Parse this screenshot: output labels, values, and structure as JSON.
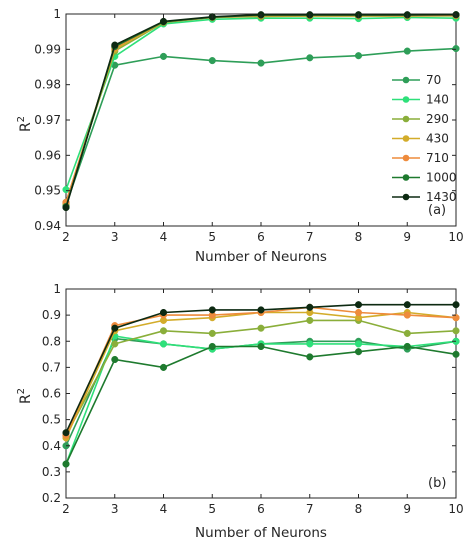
{
  "chart_data": [
    {
      "type": "line",
      "panel_label": "(a)",
      "xlabel": "Number of Neurons",
      "ylabel": "R",
      "ylabel_sup": "2",
      "x": [
        2,
        3,
        4,
        5,
        6,
        7,
        8,
        9,
        10
      ],
      "xlim": [
        2,
        10
      ],
      "ylim": [
        0.94,
        1
      ],
      "yticks": [
        "0.94",
        "0.95",
        "0.96",
        "0.97",
        "0.98",
        "0.99",
        "1"
      ],
      "xticks": [
        "2",
        "3",
        "4",
        "5",
        "6",
        "7",
        "8",
        "9",
        "10"
      ],
      "legend_placement": "center-right",
      "series": [
        {
          "name": "70",
          "color": "#2e9e58",
          "values": [
            0.946,
            0.9855,
            0.988,
            0.9868,
            0.9861,
            0.9876,
            0.9882,
            0.9895,
            0.9902
          ]
        },
        {
          "name": "140",
          "color": "#2ee07a",
          "values": [
            0.9503,
            0.988,
            0.9972,
            0.9985,
            0.9988,
            0.9988,
            0.9987,
            0.999,
            0.9988
          ]
        },
        {
          "name": "290",
          "color": "#8aae3a",
          "values": [
            0.9467,
            0.9895,
            0.9976,
            0.999,
            0.9993,
            0.9994,
            0.9994,
            0.9994,
            0.9995
          ]
        },
        {
          "name": "430",
          "color": "#d3ac2a",
          "values": [
            0.9463,
            0.99,
            0.9977,
            0.999,
            0.9995,
            0.9995,
            0.9995,
            0.9995,
            0.9996
          ]
        },
        {
          "name": "710",
          "color": "#ee8b3c",
          "values": [
            0.9467,
            0.9905,
            0.9978,
            0.9991,
            0.9996,
            0.9996,
            0.9996,
            0.9996,
            0.9997
          ]
        },
        {
          "name": "1000",
          "color": "#1e7a2e",
          "values": [
            0.9455,
            0.9908,
            0.9978,
            0.9991,
            0.9997,
            0.9997,
            0.9997,
            0.9997,
            0.9998
          ]
        },
        {
          "name": "1430",
          "color": "#0d2a12",
          "values": [
            0.9452,
            0.9912,
            0.9979,
            0.9992,
            0.9998,
            0.9998,
            0.9998,
            0.9998,
            0.9998
          ]
        }
      ]
    },
    {
      "type": "line",
      "panel_label": "(b)",
      "xlabel": "Number of Neurons",
      "ylabel": "R",
      "ylabel_sup": "2",
      "x": [
        2,
        3,
        4,
        5,
        6,
        7,
        8,
        9,
        10
      ],
      "xlim": [
        2,
        10
      ],
      "ylim": [
        0.2,
        1
      ],
      "yticks": [
        "0.2",
        "0.3",
        "0.4",
        "0.5",
        "0.6",
        "0.7",
        "0.8",
        "0.9",
        "1"
      ],
      "xticks": [
        "2",
        "3",
        "4",
        "5",
        "6",
        "7",
        "8",
        "9",
        "10"
      ],
      "series": [
        {
          "name": "70",
          "color": "#2e9e58",
          "values": [
            0.4,
            0.81,
            0.79,
            0.77,
            0.79,
            0.8,
            0.8,
            0.77,
            0.8
          ]
        },
        {
          "name": "140",
          "color": "#2ee07a",
          "values": [
            0.33,
            0.82,
            0.79,
            0.77,
            0.79,
            0.79,
            0.79,
            0.78,
            0.8
          ]
        },
        {
          "name": "290",
          "color": "#8aae3a",
          "values": [
            0.44,
            0.79,
            0.84,
            0.83,
            0.85,
            0.88,
            0.88,
            0.83,
            0.84
          ]
        },
        {
          "name": "430",
          "color": "#d3ac2a",
          "values": [
            0.43,
            0.84,
            0.88,
            0.89,
            0.91,
            0.91,
            0.89,
            0.91,
            0.89
          ]
        },
        {
          "name": "710",
          "color": "#ee8b3c",
          "values": [
            0.44,
            0.86,
            0.9,
            0.9,
            0.91,
            0.93,
            0.91,
            0.9,
            0.89
          ]
        },
        {
          "name": "1000",
          "color": "#1e7a2e",
          "values": [
            0.33,
            0.73,
            0.7,
            0.78,
            0.78,
            0.74,
            0.76,
            0.78,
            0.75
          ]
        },
        {
          "name": "1430",
          "color": "#0d2a12",
          "values": [
            0.45,
            0.85,
            0.91,
            0.92,
            0.92,
            0.93,
            0.94,
            0.94,
            0.94
          ]
        }
      ]
    }
  ]
}
